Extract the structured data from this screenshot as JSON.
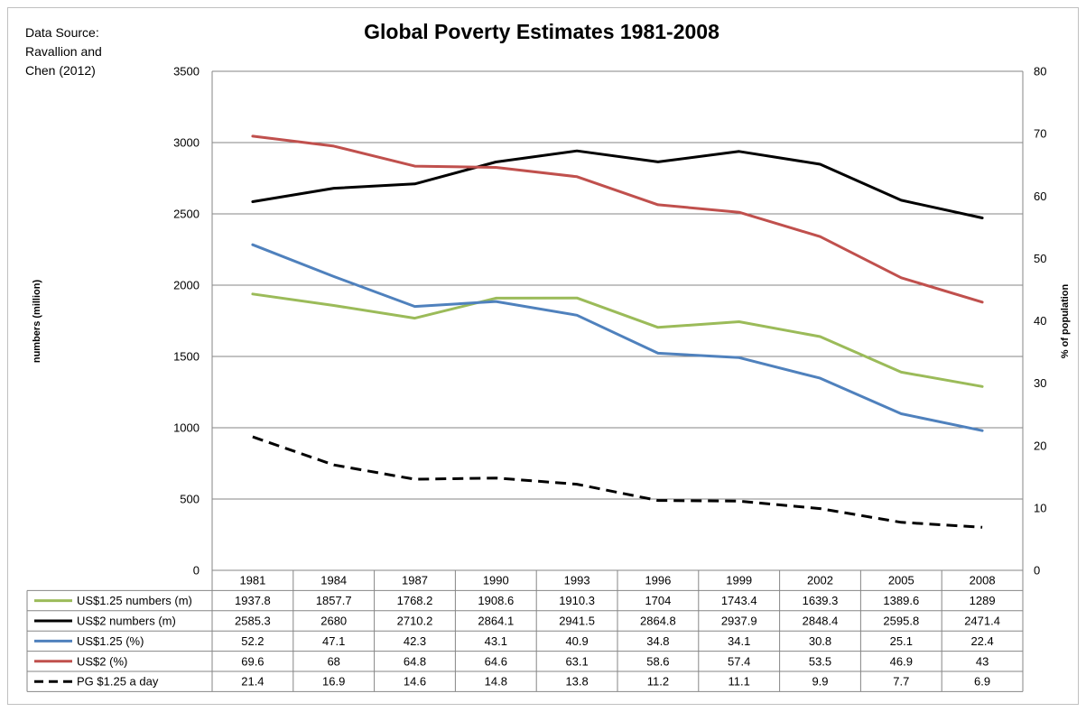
{
  "chart_data": {
    "type": "line",
    "title": "Global Poverty Estimates 1981-2008",
    "source_note": [
      "Data Source:",
      "Ravallion and",
      "Chen (2012)"
    ],
    "categories": [
      "1981",
      "1984",
      "1987",
      "1990",
      "1993",
      "1996",
      "1999",
      "2002",
      "2005",
      "2008"
    ],
    "y_left": {
      "label": "numbers (million)",
      "ylim": [
        0,
        3500
      ],
      "ticks": [
        "0",
        "500",
        "1000",
        "1500",
        "2000",
        "2500",
        "3000",
        "3500"
      ]
    },
    "y_right": {
      "label": "% of population",
      "ylim": [
        0,
        80
      ],
      "ticks": [
        "0",
        "10",
        "20",
        "30",
        "40",
        "50",
        "60",
        "70",
        "80"
      ]
    },
    "grid": true,
    "legend_placement": "data-table",
    "series": [
      {
        "name": "US$1.25 numbers (m)",
        "axis": "left",
        "color": "#9bbb59",
        "dash": false,
        "values": [
          1937.8,
          1857.7,
          1768.2,
          1908.6,
          1910.3,
          1704,
          1743.4,
          1639.3,
          1389.6,
          1289
        ],
        "labels": [
          "1937.8",
          "1857.7",
          "1768.2",
          "1908.6",
          "1910.3",
          "1704",
          "1743.4",
          "1639.3",
          "1389.6",
          "1289"
        ]
      },
      {
        "name": "US$2 numbers (m)",
        "axis": "left",
        "color": "#000000",
        "dash": false,
        "values": [
          2585.3,
          2680,
          2710.2,
          2864.1,
          2941.5,
          2864.8,
          2937.9,
          2848.4,
          2595.8,
          2471.4
        ],
        "labels": [
          "2585.3",
          "2680",
          "2710.2",
          "2864.1",
          "2941.5",
          "2864.8",
          "2937.9",
          "2848.4",
          "2595.8",
          "2471.4"
        ]
      },
      {
        "name": "US$1.25 (%)",
        "axis": "right",
        "color": "#4f81bd",
        "dash": false,
        "values": [
          52.2,
          47.1,
          42.3,
          43.1,
          40.9,
          34.8,
          34.1,
          30.8,
          25.1,
          22.4
        ],
        "labels": [
          "52.2",
          "47.1",
          "42.3",
          "43.1",
          "40.9",
          "34.8",
          "34.1",
          "30.8",
          "25.1",
          "22.4"
        ]
      },
      {
        "name": "US$2 (%)",
        "axis": "right",
        "color": "#c0504d",
        "dash": false,
        "values": [
          69.6,
          68,
          64.8,
          64.6,
          63.1,
          58.6,
          57.4,
          53.5,
          46.9,
          43
        ],
        "labels": [
          "69.6",
          "68",
          "64.8",
          "64.6",
          "63.1",
          "58.6",
          "57.4",
          "53.5",
          "46.9",
          "43"
        ]
      },
      {
        "name": "PG $1.25 a day",
        "axis": "right",
        "color": "#000000",
        "dash": true,
        "values": [
          21.4,
          16.9,
          14.6,
          14.8,
          13.8,
          11.2,
          11.1,
          9.9,
          7.7,
          6.9
        ],
        "labels": [
          "21.4",
          "16.9",
          "14.6",
          "14.8",
          "13.8",
          "11.2",
          "11.1",
          "9.9",
          "7.7",
          "6.9"
        ]
      }
    ]
  }
}
